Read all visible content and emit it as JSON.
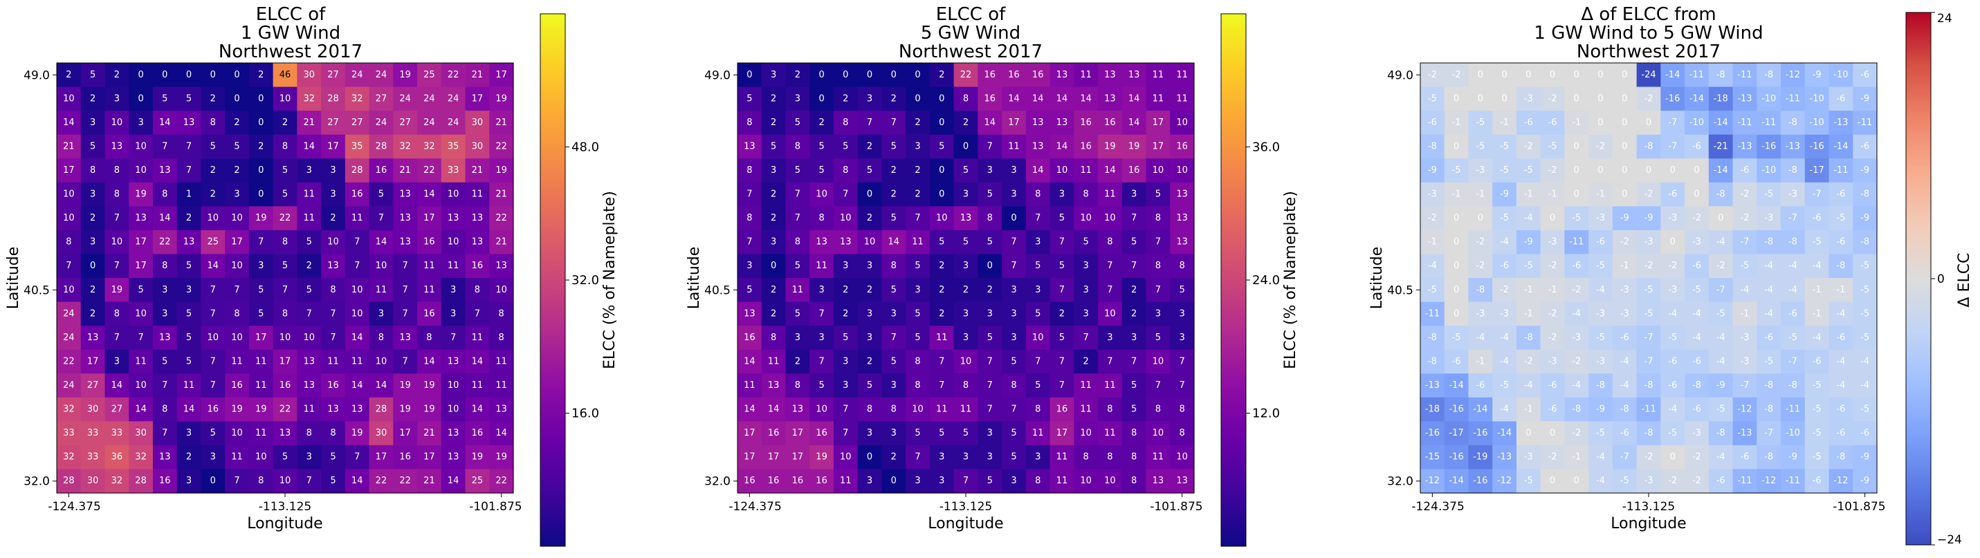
{
  "chart_data": [
    {
      "type": "heatmap",
      "title": [
        "ELCC of",
        "1 GW Wind",
        "Northwest 2017"
      ],
      "xlabel": "Longitude",
      "ylabel": "Latitude",
      "xticks": [
        "-124.375",
        "-113.125",
        "-101.875"
      ],
      "yticks": [
        "49.0",
        "40.5",
        "32.0"
      ],
      "colorbar_label": "ELCC (% of Nameplate)",
      "colorbar_ticks": [
        "16.0",
        "32.0",
        "48.0"
      ],
      "colorbar_tick_values": [
        16,
        32,
        48
      ],
      "colormap": "plasma",
      "vmin": 0,
      "vmax": 64,
      "values": [
        [
          2,
          5,
          2,
          0,
          0,
          0,
          0,
          0,
          2,
          46,
          30,
          27,
          24,
          24,
          19,
          25,
          22,
          21,
          17
        ],
        [
          10,
          2,
          3,
          0,
          5,
          5,
          2,
          0,
          0,
          10,
          32,
          28,
          32,
          27,
          24,
          24,
          24,
          17,
          19
        ],
        [
          14,
          3,
          10,
          3,
          14,
          13,
          8,
          2,
          0,
          2,
          21,
          27,
          27,
          24,
          27,
          24,
          24,
          30,
          21
        ],
        [
          21,
          5,
          13,
          10,
          7,
          7,
          5,
          5,
          2,
          8,
          14,
          17,
          35,
          28,
          32,
          32,
          35,
          30,
          22
        ],
        [
          17,
          8,
          8,
          10,
          13,
          7,
          2,
          2,
          0,
          5,
          3,
          3,
          28,
          16,
          21,
          22,
          33,
          21,
          19
        ],
        [
          10,
          3,
          8,
          19,
          8,
          1,
          2,
          3,
          0,
          5,
          11,
          3,
          16,
          5,
          13,
          14,
          10,
          11,
          21
        ],
        [
          10,
          2,
          7,
          13,
          14,
          2,
          10,
          10,
          19,
          22,
          11,
          2,
          11,
          7,
          13,
          17,
          13,
          13,
          22
        ],
        [
          8,
          3,
          10,
          17,
          22,
          13,
          25,
          17,
          7,
          8,
          5,
          10,
          7,
          14,
          13,
          16,
          10,
          13,
          21
        ],
        [
          7,
          0,
          7,
          17,
          8,
          5,
          14,
          10,
          3,
          5,
          2,
          13,
          7,
          10,
          7,
          11,
          11,
          16,
          13
        ],
        [
          10,
          2,
          19,
          5,
          3,
          3,
          7,
          7,
          5,
          7,
          5,
          8,
          10,
          11,
          7,
          11,
          3,
          8,
          10
        ],
        [
          24,
          2,
          8,
          10,
          3,
          5,
          7,
          8,
          5,
          8,
          7,
          7,
          10,
          3,
          7,
          16,
          3,
          7,
          8
        ],
        [
          24,
          13,
          7,
          7,
          13,
          5,
          10,
          10,
          17,
          10,
          10,
          7,
          14,
          8,
          13,
          8,
          7,
          11,
          8
        ],
        [
          22,
          17,
          3,
          11,
          5,
          5,
          7,
          11,
          11,
          17,
          13,
          11,
          11,
          10,
          7,
          14,
          13,
          14,
          11
        ],
        [
          24,
          27,
          14,
          10,
          7,
          11,
          7,
          16,
          11,
          16,
          13,
          16,
          14,
          14,
          19,
          19,
          10,
          11,
          11
        ],
        [
          32,
          30,
          27,
          14,
          8,
          14,
          16,
          19,
          19,
          22,
          11,
          13,
          13,
          28,
          19,
          19,
          10,
          14,
          13
        ],
        [
          33,
          33,
          33,
          30,
          7,
          3,
          5,
          10,
          11,
          13,
          8,
          8,
          19,
          30,
          17,
          21,
          13,
          16,
          14
        ],
        [
          32,
          33,
          36,
          32,
          13,
          2,
          3,
          11,
          10,
          5,
          3,
          5,
          7,
          17,
          16,
          17,
          13,
          19,
          19
        ],
        [
          28,
          30,
          32,
          28,
          16,
          3,
          0,
          7,
          8,
          10,
          7,
          5,
          14,
          22,
          22,
          21,
          14,
          25,
          22
        ]
      ]
    },
    {
      "type": "heatmap",
      "title": [
        "ELCC of",
        "5 GW Wind",
        "Northwest 2017"
      ],
      "xlabel": "Longitude",
      "ylabel": "Latitude",
      "xticks": [
        "-124.375",
        "-113.125",
        "-101.875"
      ],
      "yticks": [
        "49.0",
        "40.5",
        "32.0"
      ],
      "colorbar_label": "ELCC (% of Nameplate)",
      "colorbar_ticks": [
        "12.0",
        "24.0",
        "36.0"
      ],
      "colorbar_tick_values": [
        12,
        24,
        36
      ],
      "colormap": "plasma",
      "vmin": 0,
      "vmax": 48,
      "values": [
        [
          0,
          3,
          2,
          0,
          0,
          0,
          0,
          0,
          2,
          22,
          16,
          16,
          16,
          13,
          11,
          13,
          13,
          11,
          11
        ],
        [
          5,
          2,
          3,
          0,
          2,
          3,
          2,
          0,
          0,
          8,
          16,
          14,
          14,
          14,
          14,
          13,
          14,
          11,
          11
        ],
        [
          8,
          2,
          5,
          2,
          8,
          7,
          7,
          2,
          0,
          2,
          14,
          17,
          13,
          13,
          16,
          16,
          14,
          17,
          10
        ],
        [
          13,
          5,
          8,
          5,
          5,
          2,
          5,
          3,
          5,
          0,
          7,
          11,
          13,
          14,
          16,
          19,
          19,
          17,
          16
        ],
        [
          8,
          3,
          5,
          5,
          8,
          5,
          2,
          2,
          0,
          5,
          3,
          3,
          14,
          10,
          11,
          14,
          16,
          10,
          10
        ],
        [
          7,
          2,
          7,
          10,
          7,
          0,
          2,
          2,
          0,
          3,
          5,
          3,
          8,
          3,
          8,
          11,
          3,
          5,
          13
        ],
        [
          8,
          2,
          7,
          8,
          10,
          2,
          5,
          7,
          10,
          13,
          8,
          0,
          7,
          5,
          10,
          10,
          7,
          8,
          13
        ],
        [
          7,
          3,
          8,
          13,
          13,
          10,
          14,
          11,
          5,
          5,
          5,
          7,
          3,
          7,
          5,
          8,
          5,
          7,
          13
        ],
        [
          3,
          0,
          5,
          11,
          3,
          3,
          8,
          5,
          2,
          3,
          0,
          7,
          5,
          5,
          3,
          7,
          7,
          8,
          8
        ],
        [
          5,
          2,
          11,
          3,
          2,
          2,
          5,
          3,
          2,
          2,
          2,
          3,
          3,
          7,
          3,
          7,
          2,
          7,
          5
        ],
        [
          13,
          2,
          5,
          7,
          2,
          3,
          3,
          5,
          2,
          3,
          3,
          3,
          5,
          2,
          3,
          10,
          2,
          3,
          3
        ],
        [
          16,
          8,
          3,
          3,
          5,
          3,
          7,
          5,
          11,
          3,
          5,
          3,
          10,
          5,
          7,
          3,
          3,
          5,
          3
        ],
        [
          14,
          11,
          2,
          7,
          3,
          2,
          5,
          8,
          7,
          10,
          7,
          5,
          7,
          7,
          2,
          7,
          7,
          10,
          7
        ],
        [
          11,
          13,
          8,
          5,
          3,
          5,
          3,
          8,
          7,
          8,
          7,
          8,
          5,
          7,
          11,
          11,
          5,
          7,
          7
        ],
        [
          14,
          14,
          13,
          10,
          7,
          8,
          8,
          10,
          11,
          11,
          7,
          7,
          8,
          16,
          11,
          8,
          5,
          8,
          8
        ],
        [
          17,
          16,
          17,
          16,
          7,
          3,
          3,
          5,
          5,
          5,
          3,
          5,
          11,
          17,
          10,
          11,
          8,
          10,
          8
        ],
        [
          17,
          17,
          17,
          19,
          10,
          0,
          2,
          7,
          3,
          3,
          3,
          5,
          3,
          11,
          8,
          8,
          8,
          11,
          10
        ],
        [
          16,
          16,
          16,
          16,
          11,
          3,
          0,
          3,
          3,
          7,
          5,
          3,
          8,
          11,
          10,
          10,
          8,
          13,
          13
        ]
      ]
    },
    {
      "type": "heatmap",
      "title": [
        "Δ of ELCC from",
        "1 GW Wind to 5 GW Wind",
        "Northwest 2017"
      ],
      "xlabel": "Longitude",
      "ylabel": "Latitude",
      "xticks": [
        "-124.375",
        "-113.125",
        "-101.875"
      ],
      "yticks": [
        "49.0",
        "40.5",
        "32.0"
      ],
      "colorbar_label": "Δ ELCC",
      "colorbar_ticks": [
        "24",
        "0",
        "−24"
      ],
      "colorbar_tick_values": [
        24,
        0,
        -24
      ],
      "colormap": "coolwarm",
      "vmin": -24,
      "vmax": 24,
      "values": [
        [
          -2,
          -2,
          0,
          0,
          0,
          0,
          0,
          0,
          0,
          -24,
          -14,
          -11,
          -8,
          -11,
          -8,
          -12,
          -9,
          -10,
          -6
        ],
        [
          -5,
          0,
          0,
          0,
          -3,
          -2,
          0,
          0,
          0,
          -2,
          -16,
          -14,
          -18,
          -13,
          -10,
          -11,
          -10,
          -6,
          -9
        ],
        [
          -6,
          -1,
          -5,
          -1,
          -6,
          -6,
          -1,
          0,
          0,
          0,
          -7,
          -10,
          -14,
          -11,
          -11,
          -8,
          -10,
          -13,
          -11
        ],
        [
          -8,
          0,
          -5,
          -5,
          -2,
          -5,
          0,
          -2,
          0,
          -8,
          -7,
          -6,
          -21,
          -13,
          -16,
          -13,
          -16,
          -14,
          -6
        ],
        [
          -9,
          -5,
          -3,
          -5,
          -5,
          -2,
          0,
          0,
          0,
          0,
          0,
          0,
          -14,
          -6,
          -10,
          -8,
          -17,
          -11,
          -9
        ],
        [
          -3,
          -1,
          -1,
          -9,
          -1,
          -1,
          0,
          -1,
          0,
          -2,
          -6,
          0,
          -8,
          -2,
          -5,
          -3,
          -7,
          -6,
          -8
        ],
        [
          -2,
          0,
          0,
          -5,
          -4,
          0,
          -5,
          -3,
          -9,
          -9,
          -3,
          -2,
          0,
          -2,
          -3,
          -7,
          -6,
          -5,
          -9
        ],
        [
          -1,
          0,
          -2,
          -4,
          -9,
          -3,
          -11,
          -6,
          -2,
          -3,
          0,
          -3,
          -4,
          -7,
          -8,
          -8,
          -5,
          -6,
          -8
        ],
        [
          -4,
          0,
          -2,
          -6,
          -5,
          -2,
          -6,
          -5,
          -1,
          -2,
          -2,
          -6,
          -2,
          -5,
          -4,
          -4,
          -4,
          -8,
          -5
        ],
        [
          -5,
          0,
          -8,
          -2,
          -1,
          -1,
          -2,
          -4,
          -3,
          -5,
          -3,
          -5,
          -7,
          -4,
          -4,
          -4,
          -1,
          -1,
          -5
        ],
        [
          -11,
          0,
          -3,
          -3,
          -1,
          -2,
          -4,
          -3,
          -3,
          -5,
          -4,
          -4,
          -5,
          -1,
          -4,
          -6,
          -1,
          -4,
          -5
        ],
        [
          -8,
          -5,
          -4,
          -4,
          -8,
          -2,
          -3,
          -5,
          -6,
          -7,
          -5,
          -4,
          -4,
          -3,
          -6,
          -5,
          -4,
          -6,
          -5
        ],
        [
          -8,
          -6,
          -1,
          -4,
          -2,
          -3,
          -2,
          -3,
          -4,
          -7,
          -6,
          -6,
          -4,
          -3,
          -5,
          -7,
          -6,
          -4,
          -4
        ],
        [
          -13,
          -14,
          -6,
          -5,
          -4,
          -6,
          -4,
          -8,
          -4,
          -8,
          -6,
          -8,
          -9,
          -7,
          -8,
          -8,
          -5,
          -4,
          -4
        ],
        [
          -18,
          -16,
          -14,
          -4,
          -1,
          -6,
          -8,
          -9,
          -8,
          -11,
          -4,
          -6,
          -5,
          -12,
          -8,
          -11,
          -5,
          -6,
          -5
        ],
        [
          -16,
          -17,
          -16,
          -14,
          0,
          0,
          -2,
          -5,
          -6,
          -8,
          -5,
          -3,
          -8,
          -13,
          -7,
          -10,
          -5,
          -6,
          -6
        ],
        [
          -15,
          -16,
          -19,
          -13,
          -3,
          -2,
          -1,
          -4,
          -7,
          -2,
          0,
          -2,
          -4,
          -6,
          -8,
          -9,
          -5,
          -8,
          -9
        ],
        [
          -12,
          -14,
          -16,
          -12,
          -5,
          0,
          0,
          -4,
          -5,
          -3,
          -2,
          -2,
          -6,
          -11,
          -12,
          -11,
          -6,
          -12,
          -9
        ]
      ]
    }
  ]
}
